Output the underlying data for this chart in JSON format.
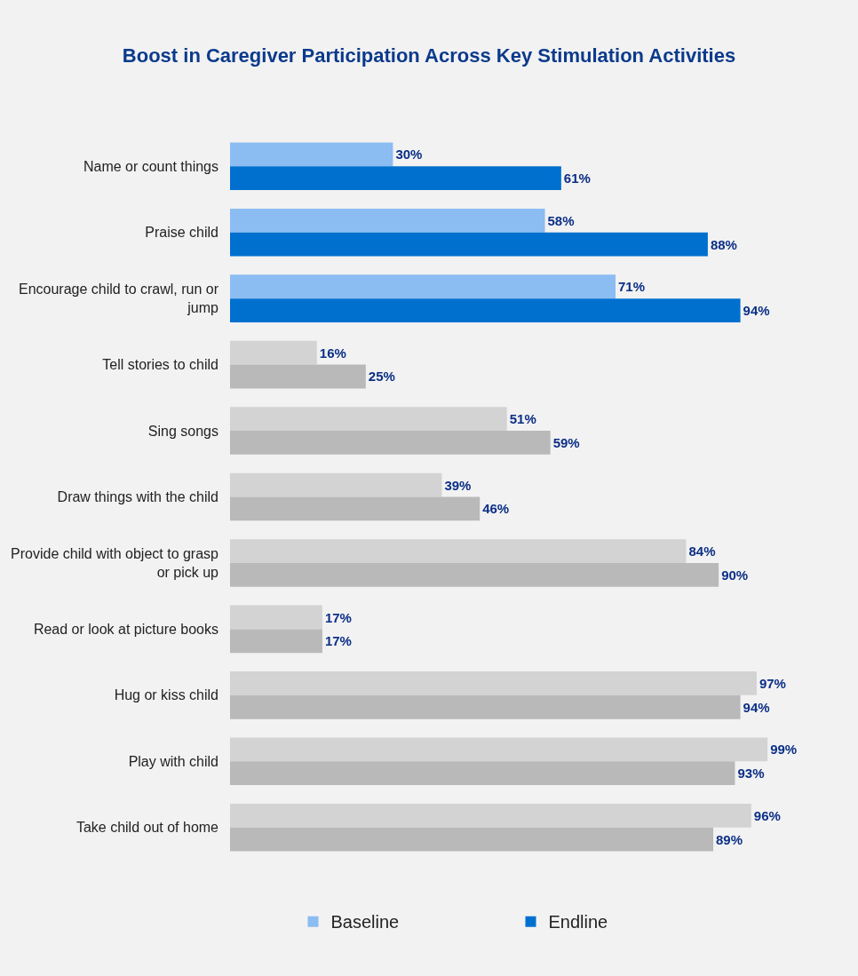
{
  "chart_data": {
    "type": "bar",
    "orientation": "horizontal",
    "title": "Boost in Caregiver Participation Across Key Stimulation Activities",
    "categories": [
      "Name or count things",
      "Praise child",
      "Encourage child to crawl, run or jump",
      "Tell stories to child",
      "Sing songs",
      "Draw things with the child",
      "Provide child with object to grasp or pick up",
      "Read or look at picture books",
      "Hug or kiss child",
      "Play with child",
      "Take child out of home"
    ],
    "series": [
      {
        "name": "Baseline",
        "colors": [
          "#8bbcf2",
          "#8bbcf2",
          "#8bbcf2",
          "#d3d3d3",
          "#d3d3d3",
          "#d3d3d3",
          "#d3d3d3",
          "#d3d3d3",
          "#d3d3d3",
          "#d3d3d3",
          "#d3d3d3"
        ],
        "values": [
          30,
          58,
          71,
          16,
          51,
          39,
          84,
          17,
          97,
          99,
          96
        ],
        "value_labels": [
          "30%",
          "58%",
          "71%",
          "16%",
          "51%",
          "39%",
          "84%",
          "17%",
          "97%",
          "99%",
          "96%"
        ]
      },
      {
        "name": "Endline",
        "colors": [
          "#0070cf",
          "#0070cf",
          "#0070cf",
          "#b9b9b9",
          "#b9b9b9",
          "#b9b9b9",
          "#b9b9b9",
          "#b9b9b9",
          "#b9b9b9",
          "#b9b9b9",
          "#b9b9b9"
        ],
        "values": [
          61,
          88,
          94,
          25,
          59,
          46,
          90,
          17,
          94,
          93,
          89
        ],
        "value_labels": [
          "61%",
          "88%",
          "94%",
          "25%",
          "59%",
          "46%",
          "90%",
          "17%",
          "94%",
          "93%",
          "89%"
        ]
      }
    ],
    "tick_labels": "y",
    "legend": "bottom"
  }
}
